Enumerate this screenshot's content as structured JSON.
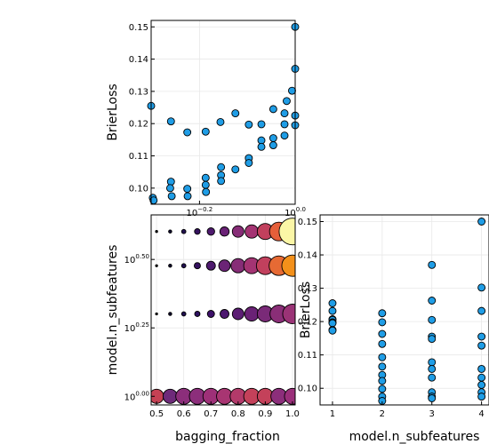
{
  "chart_data": [
    {
      "id": "top_left",
      "type": "scatter",
      "xlabel": "",
      "ylabel": "BrierLoss",
      "x_scale": "log10",
      "xlim": [
        0.5,
        1.0
      ],
      "ylim": [
        0.095,
        0.152
      ],
      "x_ticks": [
        {
          "value": 0.631,
          "base": "10",
          "exp": "−0.2"
        },
        {
          "value": 1.0,
          "base": "10",
          "exp": "0.0"
        }
      ],
      "y_ticks": [
        {
          "value": 0.1,
          "label": "0.10"
        },
        {
          "value": 0.11,
          "label": "0.11"
        },
        {
          "value": 0.12,
          "label": "0.12"
        },
        {
          "value": 0.13,
          "label": "0.13"
        },
        {
          "value": 0.14,
          "label": "0.14"
        },
        {
          "value": 0.15,
          "label": "0.15"
        }
      ],
      "grid": true,
      "point_color": "#1f9de6",
      "points": [
        {
          "x": 0.5,
          "y": 0.1255
        },
        {
          "x": 0.504,
          "y": 0.097
        },
        {
          "x": 0.506,
          "y": 0.0962
        },
        {
          "x": 0.55,
          "y": 0.1207
        },
        {
          "x": 0.55,
          "y": 0.102
        },
        {
          "x": 0.548,
          "y": 0.1
        },
        {
          "x": 0.552,
          "y": 0.0975
        },
        {
          "x": 0.595,
          "y": 0.1173
        },
        {
          "x": 0.595,
          "y": 0.0998
        },
        {
          "x": 0.596,
          "y": 0.0975
        },
        {
          "x": 0.65,
          "y": 0.1175
        },
        {
          "x": 0.65,
          "y": 0.1032
        },
        {
          "x": 0.65,
          "y": 0.101
        },
        {
          "x": 0.651,
          "y": 0.0988
        },
        {
          "x": 0.698,
          "y": 0.1205
        },
        {
          "x": 0.7,
          "y": 0.1065
        },
        {
          "x": 0.7,
          "y": 0.104
        },
        {
          "x": 0.7,
          "y": 0.1022
        },
        {
          "x": 0.75,
          "y": 0.1232
        },
        {
          "x": 0.75,
          "y": 0.1058
        },
        {
          "x": 0.8,
          "y": 0.1197
        },
        {
          "x": 0.8,
          "y": 0.1093
        },
        {
          "x": 0.8,
          "y": 0.1078
        },
        {
          "x": 0.85,
          "y": 0.1198
        },
        {
          "x": 0.85,
          "y": 0.1148
        },
        {
          "x": 0.85,
          "y": 0.1128
        },
        {
          "x": 0.9,
          "y": 0.1245
        },
        {
          "x": 0.9,
          "y": 0.1155
        },
        {
          "x": 0.9,
          "y": 0.1133
        },
        {
          "x": 0.95,
          "y": 0.1232
        },
        {
          "x": 0.95,
          "y": 0.1198
        },
        {
          "x": 0.95,
          "y": 0.1163
        },
        {
          "x": 1.0,
          "y": 0.15
        },
        {
          "x": 1.0,
          "y": 0.137
        },
        {
          "x": 0.985,
          "y": 0.1302
        },
        {
          "x": 0.96,
          "y": 0.127
        },
        {
          "x": 1.0,
          "y": 0.1225
        },
        {
          "x": 1.0,
          "y": 0.1195
        }
      ]
    },
    {
      "id": "bottom_left",
      "type": "scatter",
      "xlabel": "bagging_fraction",
      "ylabel": "model.n_subfeatures",
      "y_scale": "log10",
      "xlim": [
        0.48,
        1.01
      ],
      "ylim": [
        0.93,
        4.6
      ],
      "x_ticks": [
        {
          "value": 0.5,
          "label": "0.5"
        },
        {
          "value": 0.6,
          "label": "0.6"
        },
        {
          "value": 0.7,
          "label": "0.7"
        },
        {
          "value": 0.8,
          "label": "0.8"
        },
        {
          "value": 0.9,
          "label": "0.9"
        },
        {
          "value": 1.0,
          "label": "1.0"
        }
      ],
      "y_ticks": [
        {
          "value": 1.0,
          "base": "10",
          "exp": "0.00"
        },
        {
          "value": 1.778,
          "base": "10",
          "exp": "0.25"
        },
        {
          "value": 3.162,
          "base": "10",
          "exp": "0.50"
        }
      ],
      "grid": true,
      "note": "marker size and color encode the loss value",
      "rows": [
        {
          "y": 1,
          "x": [
            0.5,
            0.55,
            0.6,
            0.65,
            0.7,
            0.75,
            0.8,
            0.85,
            0.9,
            0.95,
            1.0
          ],
          "size": [
            8,
            8,
            9,
            9,
            9,
            9,
            9,
            9,
            9,
            9,
            9
          ],
          "color": [
            "#c64154",
            "#6e2a7a",
            "#8c2e7b",
            "#8c2e7b",
            "#9e3078",
            "#a83572",
            "#b33a6a",
            "#c4415a",
            "#c4415a",
            "#8c2e7b",
            "#9a2f7a"
          ]
        },
        {
          "y": 2,
          "x": [
            0.5,
            0.55,
            0.6,
            0.65,
            0.7,
            0.75,
            0.8,
            0.85,
            0.9,
            0.95,
            1.0
          ],
          "size": [
            1.2,
            1.8,
            2.4,
            3,
            4,
            5,
            6.5,
            8,
            9,
            10,
            11
          ],
          "color": [
            "#000004",
            "#0f0a2e",
            "#21104f",
            "#2e1160",
            "#3d1169",
            "#4c176f",
            "#5c1e74",
            "#6a2276",
            "#7a2a78",
            "#8a2e77",
            "#9a3376"
          ]
        },
        {
          "y": 3,
          "x": [
            0.5,
            0.55,
            0.6,
            0.65,
            0.7,
            0.75,
            0.8,
            0.85,
            0.9,
            0.95,
            1.0
          ],
          "size": [
            1.2,
            1.8,
            2.4,
            3.5,
            5,
            6.5,
            8,
            9,
            10,
            11,
            12
          ],
          "color": [
            "#000004",
            "#0f0a2e",
            "#21104f",
            "#35125f",
            "#4e1a6e",
            "#6b2476",
            "#872d77",
            "#a43473",
            "#c1405d",
            "#e66a34",
            "#f3901a"
          ]
        },
        {
          "y": 4,
          "x": [
            0.5,
            0.55,
            0.6,
            0.65,
            0.7,
            0.75,
            0.8,
            0.85,
            0.9,
            0.95,
            1.0
          ],
          "size": [
            1.2,
            1.8,
            2.4,
            3.2,
            4.2,
            5.2,
            6.5,
            7.5,
            9,
            10.5,
            15
          ],
          "color": [
            "#000004",
            "#0f0a2e",
            "#21104f",
            "#35125f",
            "#4e1a6e",
            "#6a2276",
            "#872d77",
            "#a43473",
            "#c1405d",
            "#e55f3a",
            "#fbf6a6"
          ]
        }
      ]
    },
    {
      "id": "bottom_right",
      "type": "scatter",
      "xlabel": "model.n_subfeatures",
      "ylabel": "BrierLoss",
      "xlim": [
        0.75,
        4.15
      ],
      "ylim": [
        0.095,
        0.152
      ],
      "x_ticks": [
        {
          "value": 1,
          "label": "1"
        },
        {
          "value": 2,
          "label": "2"
        },
        {
          "value": 3,
          "label": "3"
        },
        {
          "value": 4,
          "label": "4"
        }
      ],
      "y_ticks": [
        {
          "value": 0.1,
          "label": "0.10"
        },
        {
          "value": 0.11,
          "label": "0.11"
        },
        {
          "value": 0.12,
          "label": "0.12"
        },
        {
          "value": 0.13,
          "label": "0.13"
        },
        {
          "value": 0.14,
          "label": "0.14"
        },
        {
          "value": 0.15,
          "label": "0.15"
        }
      ],
      "grid": true,
      "point_color": "#1f9de6",
      "points": [
        {
          "x": 1,
          "y": 0.1255
        },
        {
          "x": 1,
          "y": 0.1232
        },
        {
          "x": 1,
          "y": 0.1207
        },
        {
          "x": 1,
          "y": 0.1205
        },
        {
          "x": 1,
          "y": 0.1198
        },
        {
          "x": 1,
          "y": 0.1197
        },
        {
          "x": 1,
          "y": 0.1195
        },
        {
          "x": 1,
          "y": 0.1175
        },
        {
          "x": 1,
          "y": 0.1173
        },
        {
          "x": 2,
          "y": 0.1225
        },
        {
          "x": 2,
          "y": 0.1198
        },
        {
          "x": 2,
          "y": 0.1163
        },
        {
          "x": 2,
          "y": 0.1133
        },
        {
          "x": 2,
          "y": 0.1093
        },
        {
          "x": 2,
          "y": 0.1065
        },
        {
          "x": 2,
          "y": 0.104
        },
        {
          "x": 2,
          "y": 0.1022
        },
        {
          "x": 2,
          "y": 0.0998
        },
        {
          "x": 2,
          "y": 0.0975
        },
        {
          "x": 2,
          "y": 0.0962
        },
        {
          "x": 3,
          "y": 0.137
        },
        {
          "x": 3,
          "y": 0.1263
        },
        {
          "x": 3,
          "y": 0.1205
        },
        {
          "x": 3,
          "y": 0.1155
        },
        {
          "x": 3,
          "y": 0.1148
        },
        {
          "x": 3,
          "y": 0.1078
        },
        {
          "x": 3,
          "y": 0.1058
        },
        {
          "x": 3,
          "y": 0.1032
        },
        {
          "x": 3,
          "y": 0.0988
        },
        {
          "x": 3,
          "y": 0.0975
        },
        {
          "x": 3,
          "y": 0.097
        },
        {
          "x": 4,
          "y": 0.15
        },
        {
          "x": 4,
          "y": 0.1302
        },
        {
          "x": 4,
          "y": 0.1232
        },
        {
          "x": 4,
          "y": 0.1155
        },
        {
          "x": 4,
          "y": 0.1128
        },
        {
          "x": 4,
          "y": 0.1058
        },
        {
          "x": 4,
          "y": 0.1032
        },
        {
          "x": 4,
          "y": 0.101
        },
        {
          "x": 4,
          "y": 0.0988
        },
        {
          "x": 4,
          "y": 0.0975
        }
      ]
    }
  ]
}
